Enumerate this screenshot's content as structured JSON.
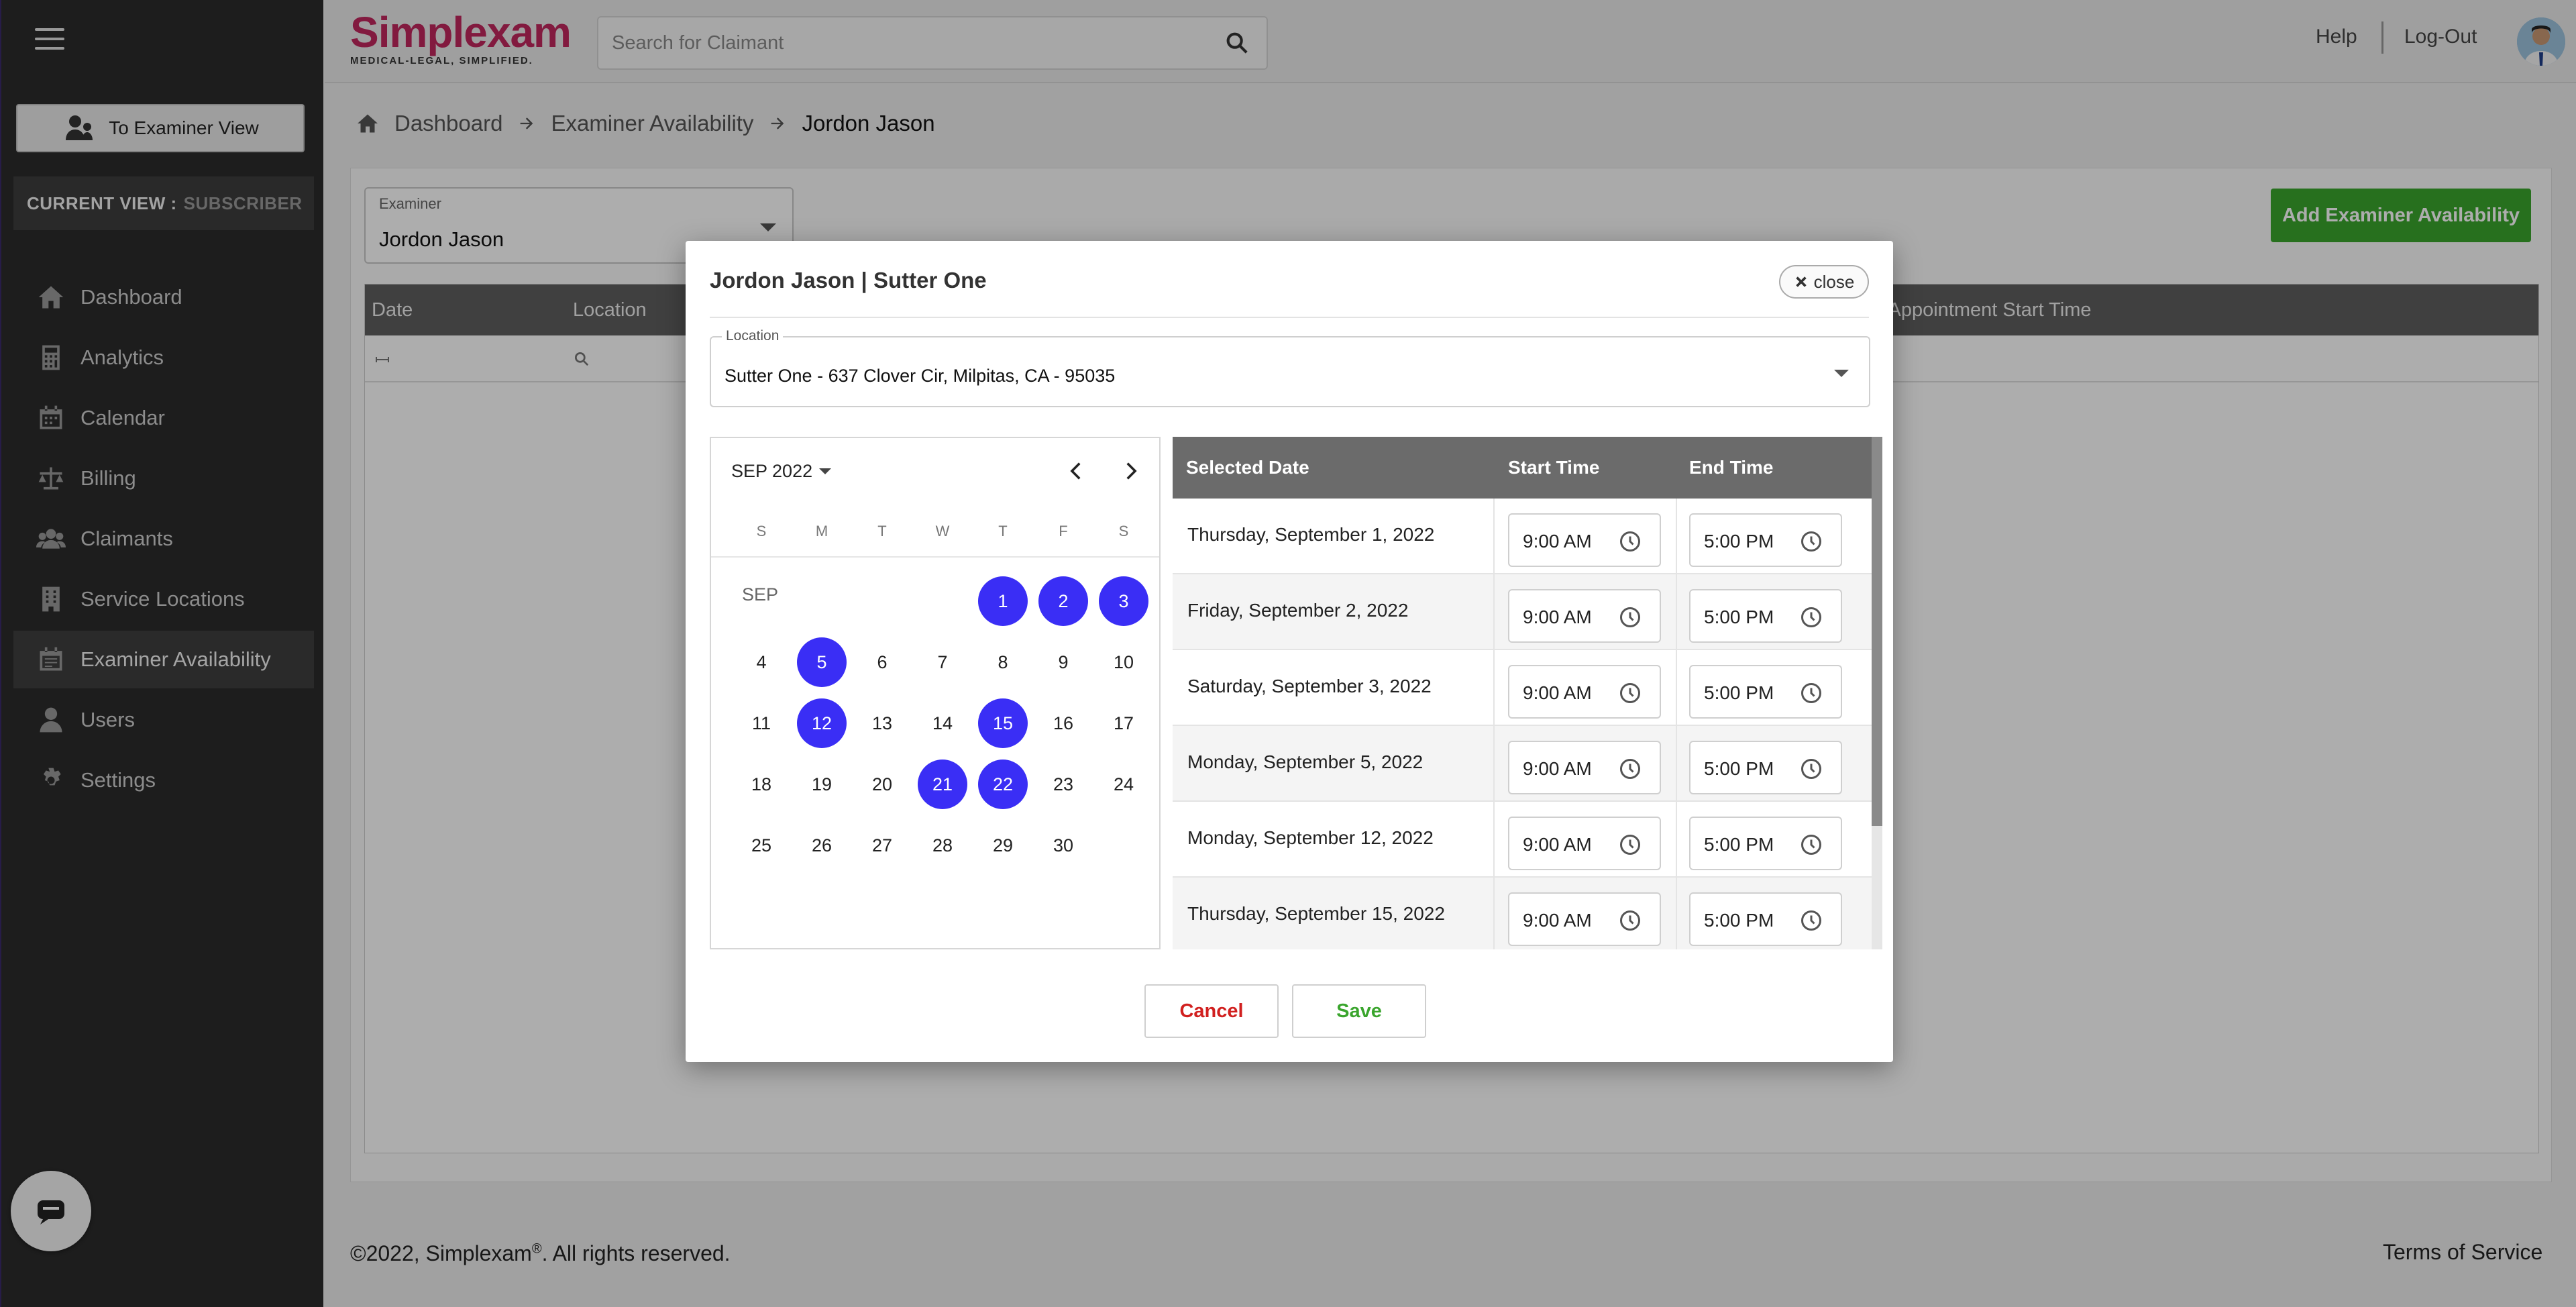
{
  "sidebar": {
    "examiner_view_label": "To Examiner View",
    "current_view_label": "CURRENT VIEW :",
    "current_view_value": "SUBSCRIBER",
    "items": [
      {
        "label": "Dashboard",
        "icon": "home-icon"
      },
      {
        "label": "Analytics",
        "icon": "calculator-icon"
      },
      {
        "label": "Calendar",
        "icon": "calendar-icon"
      },
      {
        "label": "Billing",
        "icon": "scale-icon"
      },
      {
        "label": "Claimants",
        "icon": "users-icon"
      },
      {
        "label": "Service Locations",
        "icon": "building-icon"
      },
      {
        "label": "Examiner Availability",
        "icon": "calendar-check-icon",
        "active": true
      },
      {
        "label": "Users",
        "icon": "user-tie-icon"
      },
      {
        "label": "Settings",
        "icon": "gear-icon"
      }
    ]
  },
  "header": {
    "brand": "Simplexam",
    "tagline": "MEDICAL-LEGAL, SIMPLIFIED.",
    "search_placeholder": "Search for Claimant",
    "help_label": "Help",
    "logout_label": "Log-Out"
  },
  "breadcrumb": {
    "items": [
      "Dashboard",
      "Examiner Availability",
      "Jordon Jason"
    ]
  },
  "page": {
    "examiner_label": "Examiner",
    "examiner_value": "Jordon Jason",
    "add_button": "Add Examiner Availability",
    "columns": [
      "Date",
      "Location",
      "t Appointment Start Time"
    ]
  },
  "modal": {
    "title": "Jordon Jason | Sutter One",
    "close_label": "close",
    "location_label": "Location",
    "location_value": "Sutter One - 637 Clover Cir, Milpitas, CA - 95035",
    "calendar": {
      "month_label": "SEP 2022",
      "month_short": "SEP",
      "weekdays": [
        "S",
        "M",
        "T",
        "W",
        "T",
        "F",
        "S"
      ],
      "first_weekday": 4,
      "days_in_month": 30,
      "selected_days": [
        1,
        2,
        3,
        5,
        12,
        15,
        21,
        22
      ]
    },
    "times_table": {
      "headers": [
        "Selected Date",
        "Start Time",
        "End Time"
      ],
      "rows": [
        {
          "date": "Thursday, September 1, 2022",
          "start": "9:00 AM",
          "end": "5:00 PM"
        },
        {
          "date": "Friday, September 2, 2022",
          "start": "9:00 AM",
          "end": "5:00 PM"
        },
        {
          "date": "Saturday, September 3, 2022",
          "start": "9:00 AM",
          "end": "5:00 PM"
        },
        {
          "date": "Monday, September 5, 2022",
          "start": "9:00 AM",
          "end": "5:00 PM"
        },
        {
          "date": "Monday, September 12, 2022",
          "start": "9:00 AM",
          "end": "5:00 PM"
        },
        {
          "date": "Thursday, September 15, 2022",
          "start": "9:00 AM",
          "end": "5:00 PM"
        }
      ]
    },
    "cancel_label": "Cancel",
    "save_label": "Save"
  },
  "footer": {
    "copyright_pre": "©2022, Simplexam",
    "copyright_mark": "®",
    "copyright_post": ". All rights reserved.",
    "terms_label": "Terms of Service"
  },
  "colors": {
    "accent_green": "#3aa52d",
    "selected_day": "#3a2ef5",
    "cancel_red": "#d1201f",
    "brand_pink": "#c0275e"
  }
}
